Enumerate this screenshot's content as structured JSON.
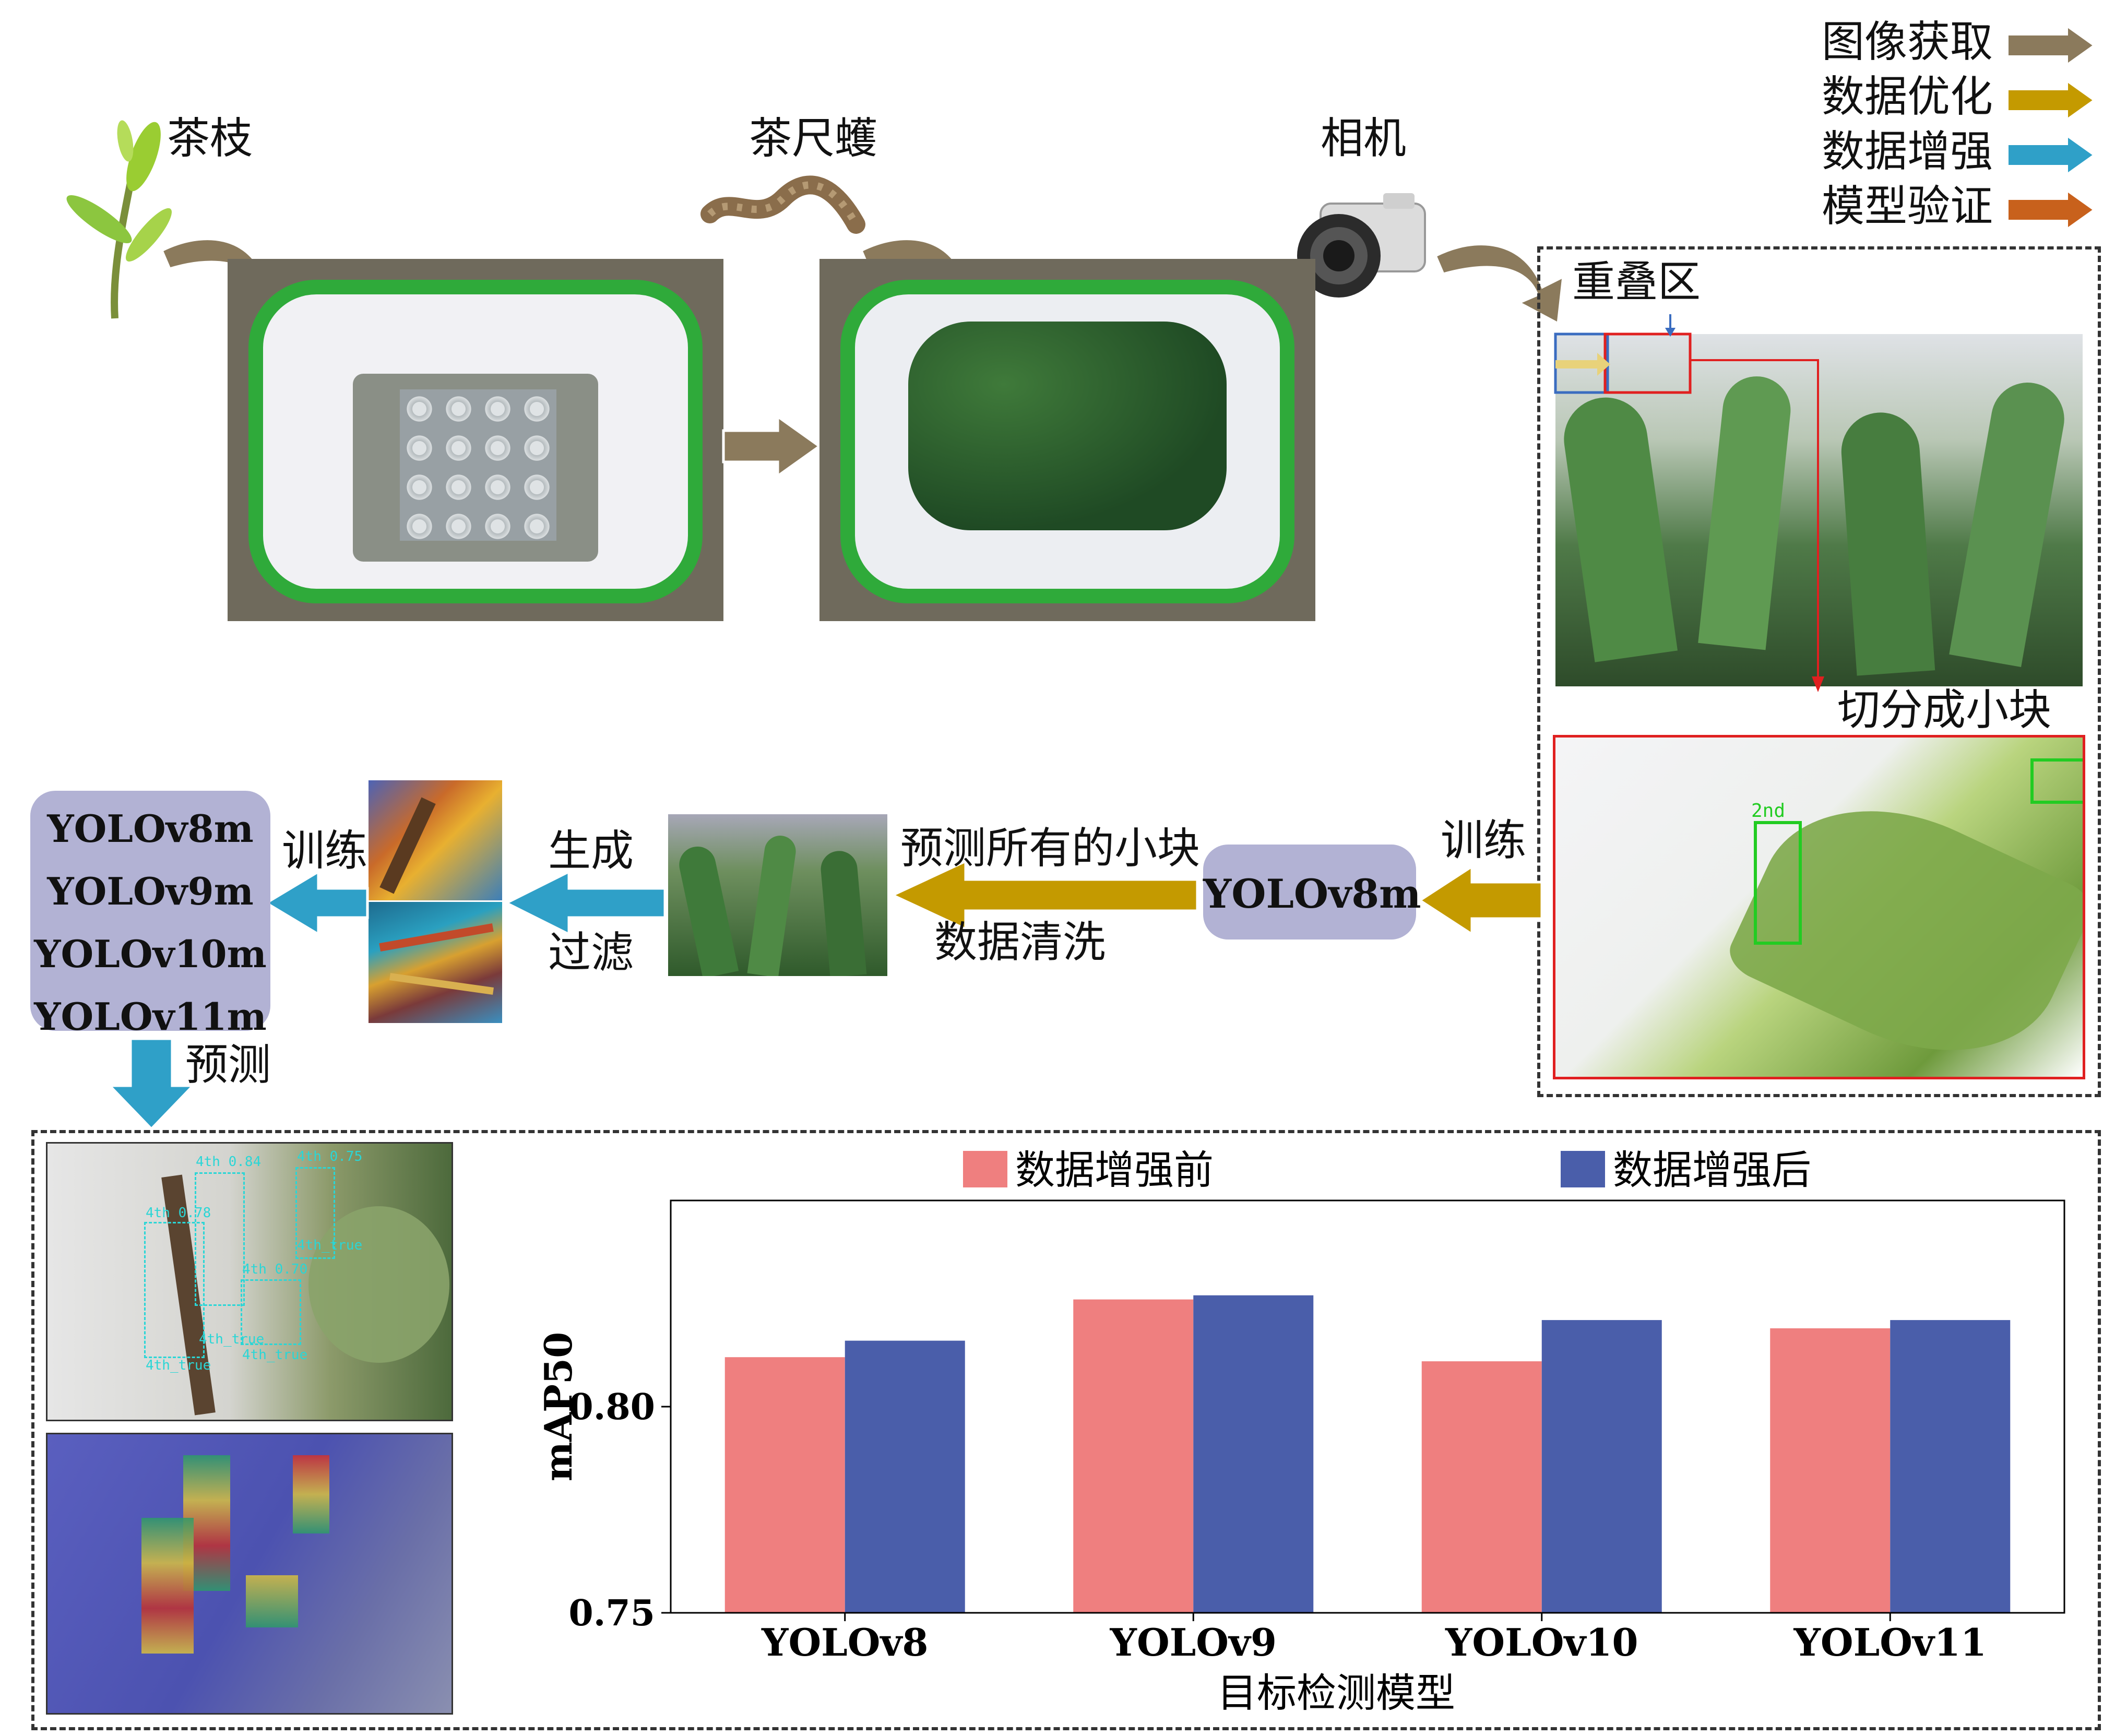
{
  "legend": {
    "items": [
      {
        "label": "图像获取",
        "color": "#8b7a5c"
      },
      {
        "label": "数据优化",
        "color": "#c49a00"
      },
      {
        "label": "数据增强",
        "color": "#2fa0c8"
      },
      {
        "label": "模型验证",
        "color": "#c8611c"
      }
    ]
  },
  "top": {
    "tea_branch_label": "茶枝",
    "looper_label": "茶尺蠖",
    "camera_label": "相机",
    "overlap_label": "重叠区",
    "slice_label": "切分成小块"
  },
  "middle": {
    "train_label_right": "训练",
    "model_single": "YOLOv8m",
    "predict_all_label": "预测所有的小块",
    "clean_label": "数据清洗",
    "generate_label": "生成",
    "filter_label": "过滤",
    "train_label_left": "训练",
    "models": [
      "YOLOv8m",
      "YOLOv9m",
      "YOLOv10m",
      "YOLOv11m"
    ],
    "predict_label": "预测",
    "crop_label": "2nd"
  },
  "detections": [
    {
      "label": "4th 0.84"
    },
    {
      "label": "4th 0.75"
    },
    {
      "label": "4th 0.78"
    },
    {
      "label": "4th 0.70"
    },
    {
      "label": "4th_true"
    },
    {
      "label": "4th_true"
    },
    {
      "label": "4th_true"
    },
    {
      "label": "4th_true"
    }
  ],
  "chart_data": {
    "type": "bar",
    "categories": [
      "YOLOv8",
      "YOLOv9",
      "YOLOv10",
      "YOLOv11"
    ],
    "series": [
      {
        "name": "数据增强前",
        "color": "#ef7f7f",
        "values": [
          0.812,
          0.826,
          0.811,
          0.819
        ]
      },
      {
        "name": "数据增强后",
        "color": "#4a5eaa",
        "values": [
          0.816,
          0.827,
          0.821,
          0.821
        ]
      }
    ],
    "xlabel": "目标检测模型",
    "ylabel": "mAP50",
    "ylim": [
      0.75,
      0.85
    ],
    "yticks": [
      "0.75",
      "0.80"
    ],
    "legend_position": "top",
    "grid": false
  }
}
